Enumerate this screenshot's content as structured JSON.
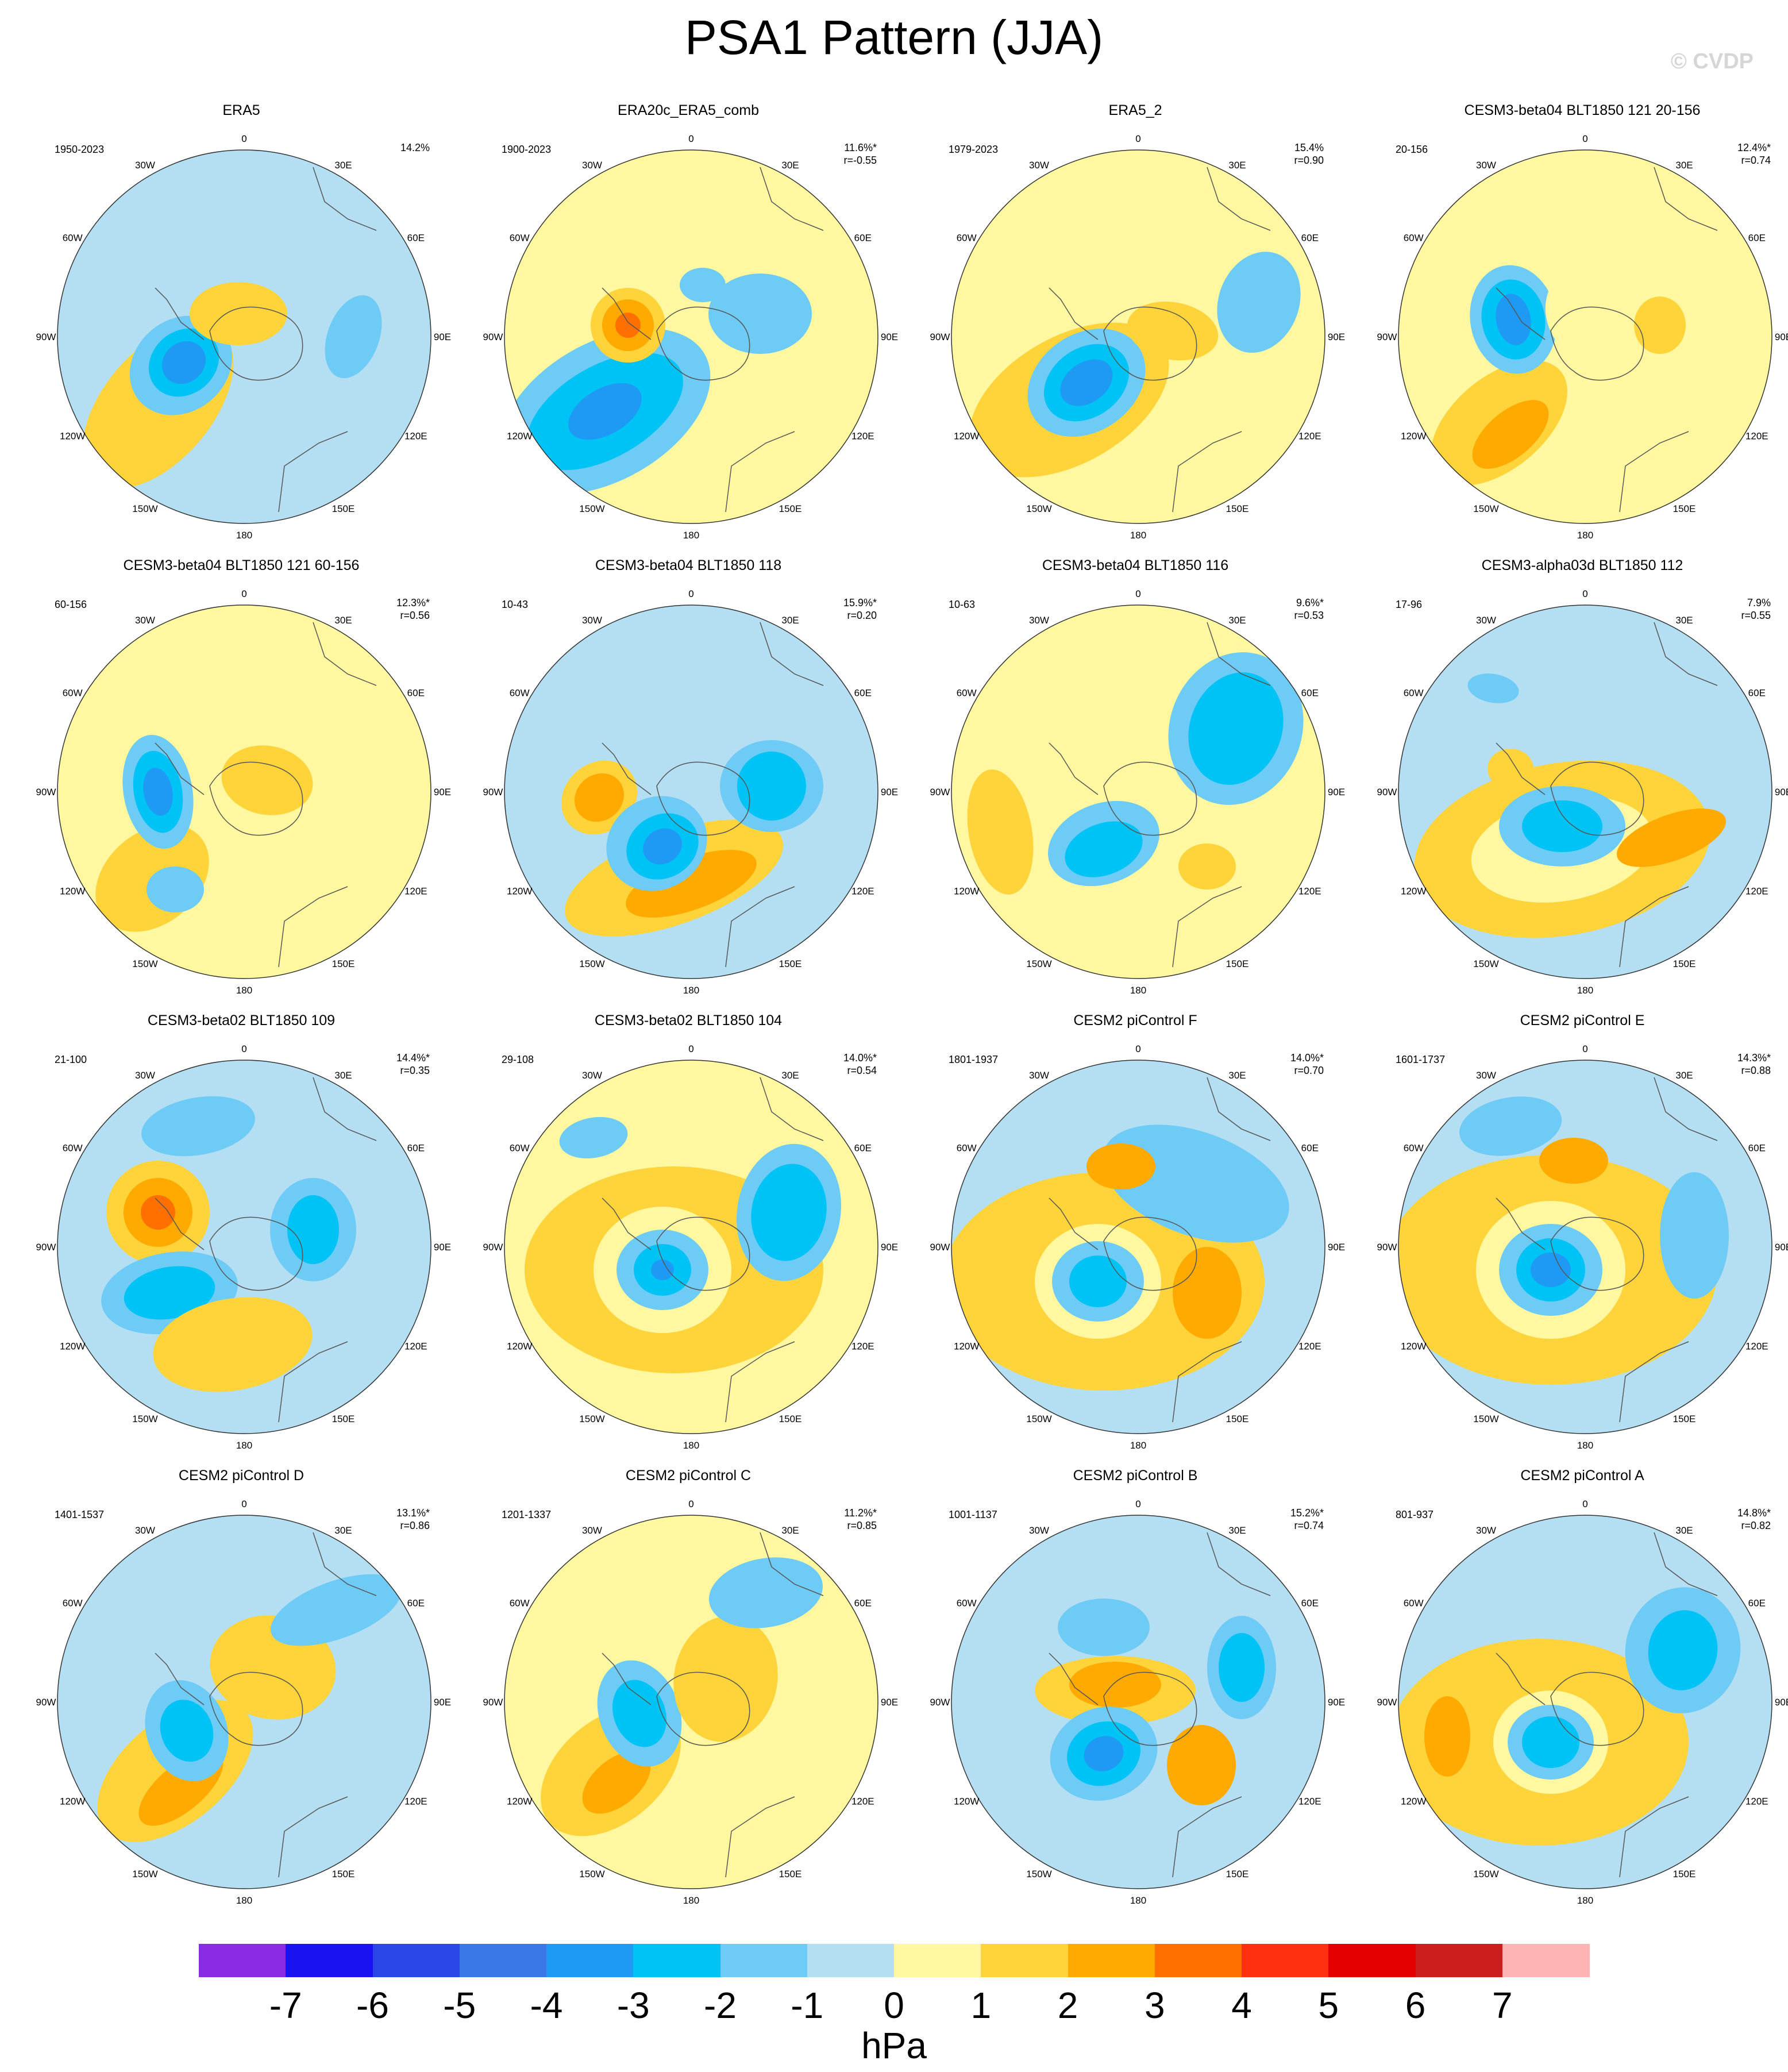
{
  "title": "PSA1 Pattern (JJA)",
  "watermark": "© CVDP",
  "longitude_labels": [
    "0",
    "30E",
    "60E",
    "90E",
    "120E",
    "150E",
    "180",
    "150W",
    "120W",
    "90W",
    "60W",
    "30W"
  ],
  "colorbar": {
    "units": "hPa",
    "tick_labels": [
      "-7",
      "-6",
      "-5",
      "-4",
      "-3",
      "-2",
      "-1",
      "0",
      "1",
      "2",
      "3",
      "4",
      "5",
      "6",
      "7"
    ],
    "colors": [
      "#8b2be2",
      "#1a12f0",
      "#2a48e8",
      "#3a78e8",
      "#1e9af5",
      "#00c3f5",
      "#6ecbf5",
      "#b4def2",
      "#fff8a0",
      "#ffd43a",
      "#ffaa00",
      "#ff7000",
      "#ff3010",
      "#e50000",
      "#cd1e1e",
      "#ffb4b4"
    ]
  },
  "panels": [
    {
      "title": "ERA5",
      "years": "1950-2023",
      "pct": "14.2%",
      "r": ""
    },
    {
      "title": "ERA20c_ERA5_comb",
      "years": "1900-2023",
      "pct": "11.6%*",
      "r": "r=-0.55"
    },
    {
      "title": "ERA5_2",
      "years": "1979-2023",
      "pct": "15.4%",
      "r": "r=0.90"
    },
    {
      "title": "CESM3-beta04 BLT1850 121 20-156",
      "years": "20-156",
      "pct": "12.4%*",
      "r": "r=0.74"
    },
    {
      "title": "CESM3-beta04 BLT1850 121 60-156",
      "years": "60-156",
      "pct": "12.3%*",
      "r": "r=0.56"
    },
    {
      "title": "CESM3-beta04 BLT1850 118",
      "years": "10-43",
      "pct": "15.9%*",
      "r": "r=0.20"
    },
    {
      "title": "CESM3-beta04 BLT1850 116",
      "years": "10-63",
      "pct": "9.6%*",
      "r": "r=0.53"
    },
    {
      "title": "CESM3-alpha03d BLT1850 112",
      "years": "17-96",
      "pct": "7.9%",
      "r": "r=0.55"
    },
    {
      "title": "CESM3-beta02 BLT1850 109",
      "years": "21-100",
      "pct": "14.4%*",
      "r": "r=0.35"
    },
    {
      "title": "CESM3-beta02 BLT1850 104",
      "years": "29-108",
      "pct": "14.0%*",
      "r": "r=0.54"
    },
    {
      "title": "CESM2 piControl F",
      "years": "1801-1937",
      "pct": "14.0%*",
      "r": "r=0.70"
    },
    {
      "title": "CESM2 piControl E",
      "years": "1601-1737",
      "pct": "14.3%*",
      "r": "r=0.88"
    },
    {
      "title": "CESM2 piControl D",
      "years": "1401-1537",
      "pct": "13.1%*",
      "r": "r=0.86"
    },
    {
      "title": "CESM2 piControl C",
      "years": "1201-1337",
      "pct": "11.2%*",
      "r": "r=0.85"
    },
    {
      "title": "CESM2 piControl B",
      "years": "1001-1137",
      "pct": "15.2%*",
      "r": "r=0.74"
    },
    {
      "title": "CESM2 piControl A",
      "years": "801-937",
      "pct": "14.8%*",
      "r": "r=0.82"
    }
  ]
}
